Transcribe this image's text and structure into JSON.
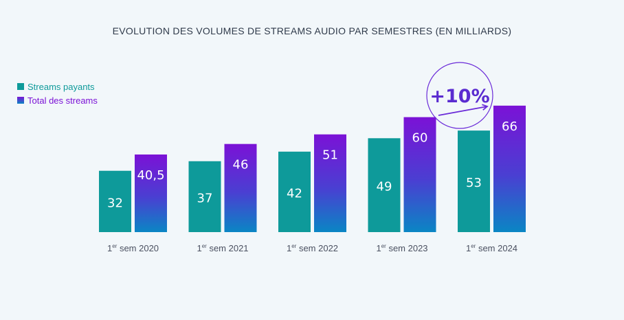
{
  "chart_data": {
    "type": "bar",
    "title": "EVOLUTION DES VOLUMES DE STREAMS AUDIO PAR SEMESTRES (EN MILLIARDS)",
    "categories": [
      "1er sem 2020",
      "1er sem 2021",
      "1er sem 2022",
      "1er sem 2023",
      "1er sem 2024"
    ],
    "category_parts": [
      {
        "pre": "1",
        "sup": "er",
        "post": " sem 2020"
      },
      {
        "pre": "1",
        "sup": "er",
        "post": " sem 2021"
      },
      {
        "pre": "1",
        "sup": "er",
        "post": " sem 2022"
      },
      {
        "pre": "1",
        "sup": "er",
        "post": " sem 2023"
      },
      {
        "pre": "1",
        "sup": "er",
        "post": " sem 2024"
      }
    ],
    "series": [
      {
        "name": "Streams payants",
        "values": [
          32,
          37,
          42,
          49,
          53
        ],
        "labels": [
          "32",
          "37",
          "42",
          "49",
          "53"
        ],
        "color": "#0e9a9a"
      },
      {
        "name": "Total des streams",
        "values": [
          40.5,
          46,
          51,
          60,
          66
        ],
        "labels": [
          "40,5",
          "46",
          "51",
          "60",
          "66"
        ],
        "color_top": "#7b12d6",
        "color_bottom": "#0a86c4"
      }
    ],
    "legend": "top-left",
    "grid": false,
    "annotation": {
      "text": "+10%",
      "between": [
        "1er sem 2023",
        "1er sem 2024"
      ],
      "series": "Total des streams"
    },
    "ylim": [
      0,
      70
    ]
  }
}
